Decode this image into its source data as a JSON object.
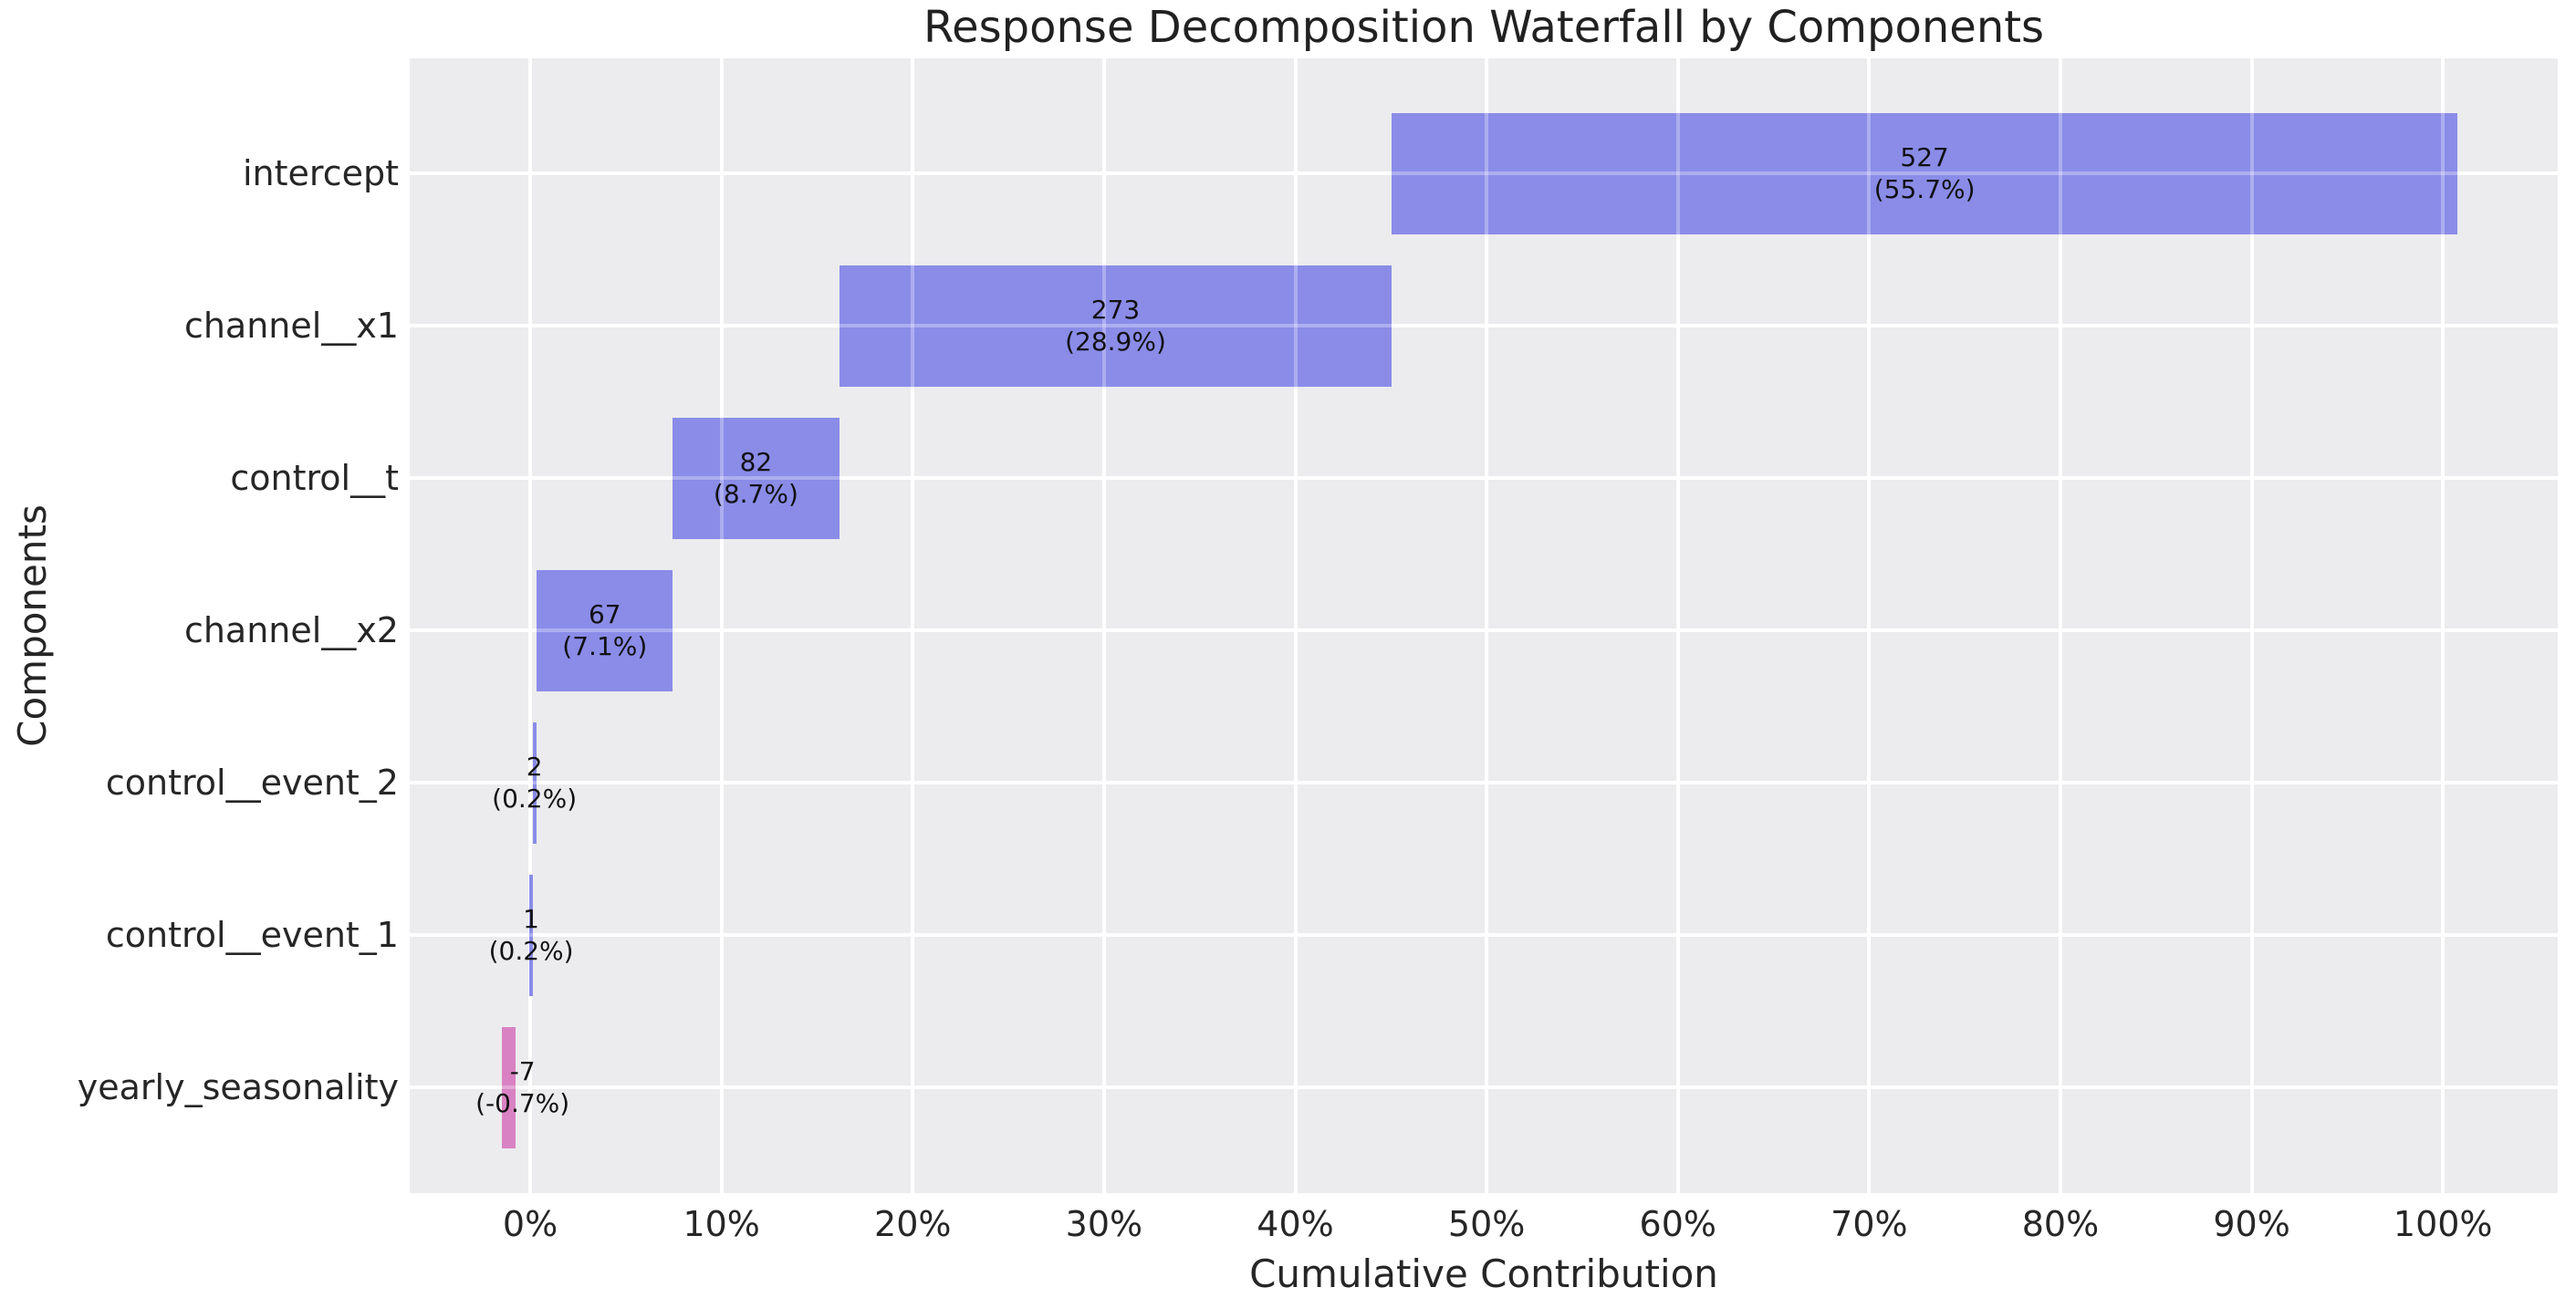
{
  "chart_data": {
    "type": "bar",
    "subtype": "horizontal-waterfall",
    "title": "Response Decomposition Waterfall by Components",
    "xlabel": "Cumulative Contribution",
    "ylabel": "Components",
    "grid": true,
    "legend": false,
    "xlim": [
      -6.3,
      106.0
    ],
    "xticks": [
      0,
      10,
      20,
      30,
      40,
      50,
      60,
      70,
      80,
      90,
      100
    ],
    "xtick_labels": [
      "0%",
      "10%",
      "20%",
      "30%",
      "40%",
      "50%",
      "60%",
      "70%",
      "80%",
      "90%",
      "100%"
    ],
    "categories": [
      "intercept",
      "channel__x1",
      "control__t",
      "channel__x2",
      "control__event_2",
      "control__event_1",
      "yearly_seasonality"
    ],
    "bars": [
      {
        "component": "intercept",
        "value": 527,
        "pct": 55.7,
        "label_value": "527",
        "label_pct": "(55.7%)",
        "start": 45.05,
        "end": 100.75,
        "color_key": "positive"
      },
      {
        "component": "channel__x1",
        "value": 273,
        "pct": 28.9,
        "label_value": "273",
        "label_pct": "(28.9%)",
        "start": 16.15,
        "end": 45.05,
        "color_key": "positive"
      },
      {
        "component": "control__t",
        "value": 82,
        "pct": 8.7,
        "label_value": "82",
        "label_pct": "(8.7%)",
        "start": 7.45,
        "end": 16.15,
        "color_key": "positive"
      },
      {
        "component": "channel__x2",
        "value": 67,
        "pct": 7.1,
        "label_value": "67",
        "label_pct": "(7.1%)",
        "start": 0.35,
        "end": 7.45,
        "color_key": "positive"
      },
      {
        "component": "control__event_2",
        "value": 2,
        "pct": 0.2,
        "label_value": "2",
        "label_pct": "(0.2%)",
        "start": 0.12,
        "end": 0.32,
        "color_key": "positive"
      },
      {
        "component": "control__event_1",
        "value": 1,
        "pct": 0.2,
        "label_value": "1",
        "label_pct": "(0.2%)",
        "start": -0.05,
        "end": 0.15,
        "color_key": "positive"
      },
      {
        "component": "yearly_seasonality",
        "value": -7,
        "pct": -0.7,
        "label_value": "-7",
        "label_pct": "(-0.7%)",
        "start": -1.47,
        "end": -0.77,
        "color_key": "negative",
        "label_x": -0.4
      }
    ],
    "colors": {
      "positive": "#8a8ce8",
      "negative": "#d982c3",
      "plot_bg": "#ececee",
      "grid": "#ffffff",
      "figure_bg": "#ffffff",
      "tick_text": "#262626",
      "title_text": "#212121",
      "bar_label_text": "#111111"
    }
  }
}
